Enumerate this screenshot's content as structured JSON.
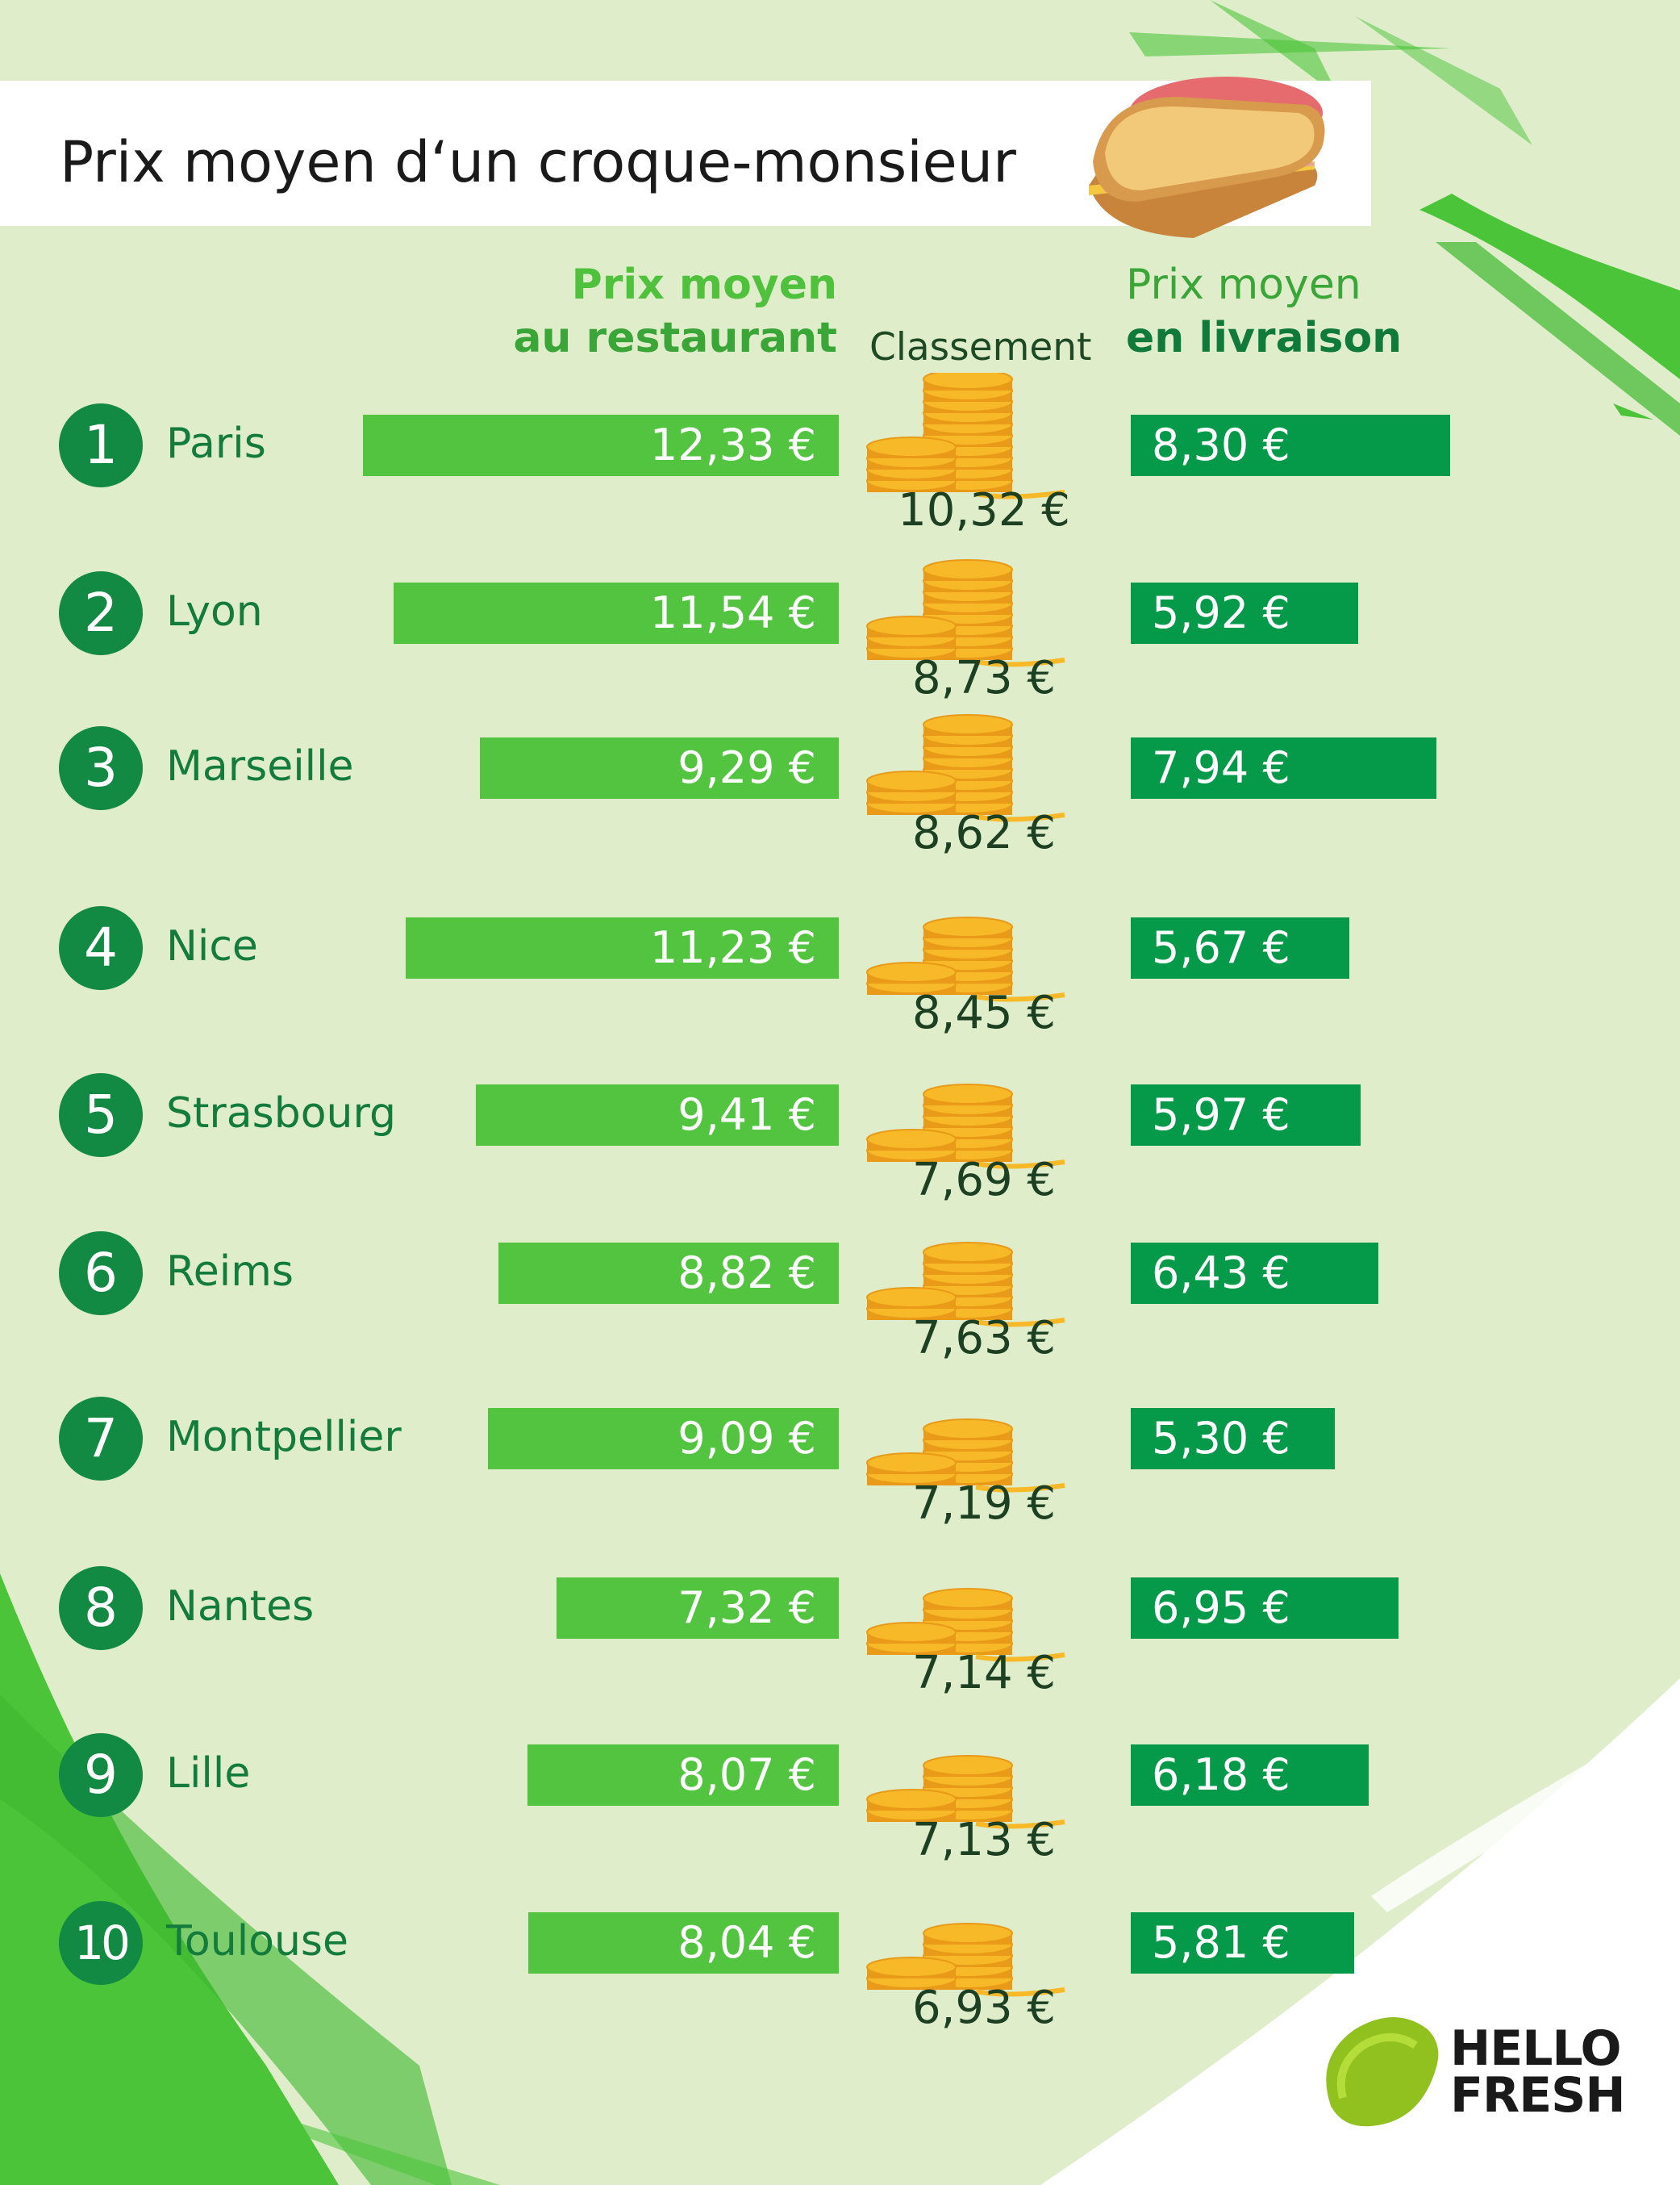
{
  "title": "Prix moyen d‘un croque-monsieur",
  "headers": {
    "restaurant_line1": "Prix moyen",
    "restaurant_line2": "au restaurant",
    "ranking": "Classement",
    "delivery_line1": "Prix moyen",
    "delivery_line2": "en livraison"
  },
  "logo": {
    "line1": "HELLO",
    "line2": "FRESH"
  },
  "colors": {
    "background": "#dfedcb",
    "restaurant_bar": "#52c43f",
    "delivery_bar": "#05994a",
    "rank_circle": "#138a43",
    "city_text": "#137b3b",
    "coins": "#f7b928"
  },
  "chart_data": {
    "type": "bar",
    "title": "Prix moyen d‘un croque-monsieur",
    "categories": [
      "Paris",
      "Lyon",
      "Marseille",
      "Nice",
      "Strasbourg",
      "Reims",
      "Montpellier",
      "Nantes",
      "Lille",
      "Toulouse"
    ],
    "ranks": [
      "1",
      "2",
      "3",
      "4",
      "5",
      "6",
      "7",
      "8",
      "9",
      "10"
    ],
    "series": [
      {
        "name": "Prix moyen au restaurant",
        "values": [
          12.33,
          11.54,
          9.29,
          11.23,
          9.41,
          8.82,
          9.09,
          7.32,
          8.07,
          8.04
        ],
        "labels": [
          "12,33 €",
          "11,54 €",
          "9,29 €",
          "11,23 €",
          "9,41 €",
          "8,82 €",
          "9,09 €",
          "7,32 €",
          "8,07 €",
          "8,04 €"
        ]
      },
      {
        "name": "Classement",
        "values": [
          10.32,
          8.73,
          8.62,
          8.45,
          7.69,
          7.63,
          7.19,
          7.14,
          7.13,
          6.93
        ],
        "labels": [
          "10,32 €",
          "8,73 €",
          "8,62 €",
          "8,45 €",
          "7,69 €",
          "7,63 €",
          "7,19 €",
          "7,14 €",
          "7,13 €",
          "6,93 €"
        ]
      },
      {
        "name": "Prix moyen en livraison",
        "values": [
          8.3,
          5.92,
          7.94,
          5.67,
          5.97,
          6.43,
          5.3,
          6.95,
          6.18,
          5.81
        ],
        "labels": [
          "8,30 €",
          "5,92 €",
          "7,94 €",
          "5,67 €",
          "5,97 €",
          "6,43 €",
          "5,30 €",
          "6,95 €",
          "6,18 €",
          "5,81 €"
        ]
      }
    ]
  }
}
